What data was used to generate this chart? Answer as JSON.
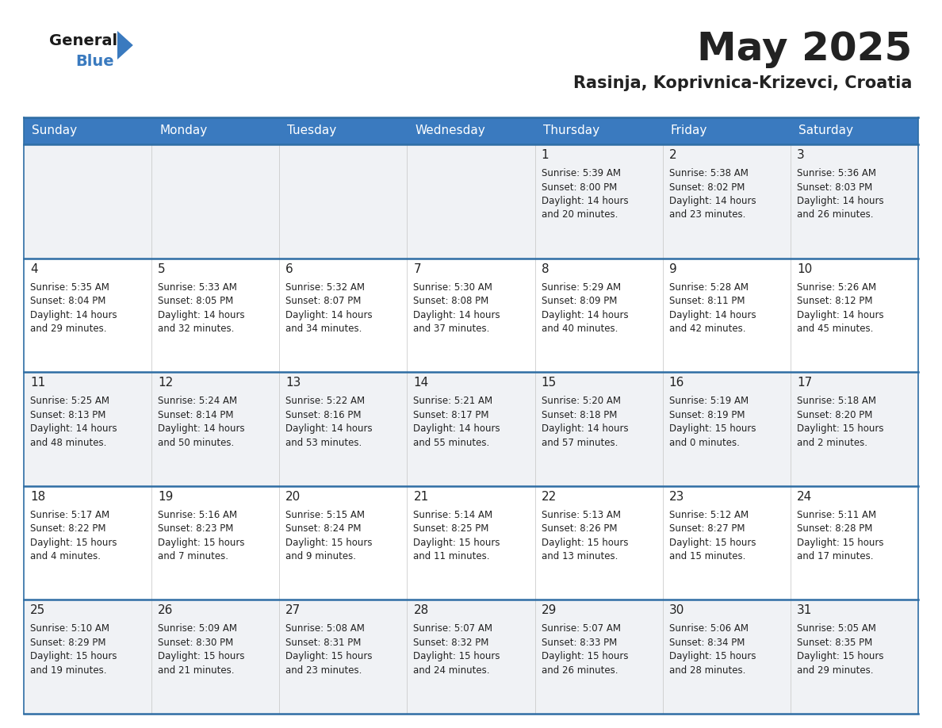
{
  "title": "May 2025",
  "subtitle": "Rasinja, Koprivnica-Krizevci, Croatia",
  "header_color": "#3a7abf",
  "header_text_color": "#ffffff",
  "cell_bg_white": "#ffffff",
  "cell_bg_gray": "#f0f2f5",
  "border_color": "#2e6da4",
  "text_color": "#222222",
  "days_of_week": [
    "Sunday",
    "Monday",
    "Tuesday",
    "Wednesday",
    "Thursday",
    "Friday",
    "Saturday"
  ],
  "weeks": [
    [
      {
        "day": "",
        "info": ""
      },
      {
        "day": "",
        "info": ""
      },
      {
        "day": "",
        "info": ""
      },
      {
        "day": "",
        "info": ""
      },
      {
        "day": "1",
        "info": "Sunrise: 5:39 AM\nSunset: 8:00 PM\nDaylight: 14 hours\nand 20 minutes."
      },
      {
        "day": "2",
        "info": "Sunrise: 5:38 AM\nSunset: 8:02 PM\nDaylight: 14 hours\nand 23 minutes."
      },
      {
        "day": "3",
        "info": "Sunrise: 5:36 AM\nSunset: 8:03 PM\nDaylight: 14 hours\nand 26 minutes."
      }
    ],
    [
      {
        "day": "4",
        "info": "Sunrise: 5:35 AM\nSunset: 8:04 PM\nDaylight: 14 hours\nand 29 minutes."
      },
      {
        "day": "5",
        "info": "Sunrise: 5:33 AM\nSunset: 8:05 PM\nDaylight: 14 hours\nand 32 minutes."
      },
      {
        "day": "6",
        "info": "Sunrise: 5:32 AM\nSunset: 8:07 PM\nDaylight: 14 hours\nand 34 minutes."
      },
      {
        "day": "7",
        "info": "Sunrise: 5:30 AM\nSunset: 8:08 PM\nDaylight: 14 hours\nand 37 minutes."
      },
      {
        "day": "8",
        "info": "Sunrise: 5:29 AM\nSunset: 8:09 PM\nDaylight: 14 hours\nand 40 minutes."
      },
      {
        "day": "9",
        "info": "Sunrise: 5:28 AM\nSunset: 8:11 PM\nDaylight: 14 hours\nand 42 minutes."
      },
      {
        "day": "10",
        "info": "Sunrise: 5:26 AM\nSunset: 8:12 PM\nDaylight: 14 hours\nand 45 minutes."
      }
    ],
    [
      {
        "day": "11",
        "info": "Sunrise: 5:25 AM\nSunset: 8:13 PM\nDaylight: 14 hours\nand 48 minutes."
      },
      {
        "day": "12",
        "info": "Sunrise: 5:24 AM\nSunset: 8:14 PM\nDaylight: 14 hours\nand 50 minutes."
      },
      {
        "day": "13",
        "info": "Sunrise: 5:22 AM\nSunset: 8:16 PM\nDaylight: 14 hours\nand 53 minutes."
      },
      {
        "day": "14",
        "info": "Sunrise: 5:21 AM\nSunset: 8:17 PM\nDaylight: 14 hours\nand 55 minutes."
      },
      {
        "day": "15",
        "info": "Sunrise: 5:20 AM\nSunset: 8:18 PM\nDaylight: 14 hours\nand 57 minutes."
      },
      {
        "day": "16",
        "info": "Sunrise: 5:19 AM\nSunset: 8:19 PM\nDaylight: 15 hours\nand 0 minutes."
      },
      {
        "day": "17",
        "info": "Sunrise: 5:18 AM\nSunset: 8:20 PM\nDaylight: 15 hours\nand 2 minutes."
      }
    ],
    [
      {
        "day": "18",
        "info": "Sunrise: 5:17 AM\nSunset: 8:22 PM\nDaylight: 15 hours\nand 4 minutes."
      },
      {
        "day": "19",
        "info": "Sunrise: 5:16 AM\nSunset: 8:23 PM\nDaylight: 15 hours\nand 7 minutes."
      },
      {
        "day": "20",
        "info": "Sunrise: 5:15 AM\nSunset: 8:24 PM\nDaylight: 15 hours\nand 9 minutes."
      },
      {
        "day": "21",
        "info": "Sunrise: 5:14 AM\nSunset: 8:25 PM\nDaylight: 15 hours\nand 11 minutes."
      },
      {
        "day": "22",
        "info": "Sunrise: 5:13 AM\nSunset: 8:26 PM\nDaylight: 15 hours\nand 13 minutes."
      },
      {
        "day": "23",
        "info": "Sunrise: 5:12 AM\nSunset: 8:27 PM\nDaylight: 15 hours\nand 15 minutes."
      },
      {
        "day": "24",
        "info": "Sunrise: 5:11 AM\nSunset: 8:28 PM\nDaylight: 15 hours\nand 17 minutes."
      }
    ],
    [
      {
        "day": "25",
        "info": "Sunrise: 5:10 AM\nSunset: 8:29 PM\nDaylight: 15 hours\nand 19 minutes."
      },
      {
        "day": "26",
        "info": "Sunrise: 5:09 AM\nSunset: 8:30 PM\nDaylight: 15 hours\nand 21 minutes."
      },
      {
        "day": "27",
        "info": "Sunrise: 5:08 AM\nSunset: 8:31 PM\nDaylight: 15 hours\nand 23 minutes."
      },
      {
        "day": "28",
        "info": "Sunrise: 5:07 AM\nSunset: 8:32 PM\nDaylight: 15 hours\nand 24 minutes."
      },
      {
        "day": "29",
        "info": "Sunrise: 5:07 AM\nSunset: 8:33 PM\nDaylight: 15 hours\nand 26 minutes."
      },
      {
        "day": "30",
        "info": "Sunrise: 5:06 AM\nSunset: 8:34 PM\nDaylight: 15 hours\nand 28 minutes."
      },
      {
        "day": "31",
        "info": "Sunrise: 5:05 AM\nSunset: 8:35 PM\nDaylight: 15 hours\nand 29 minutes."
      }
    ]
  ],
  "logo_general_color": "#1a1a1a",
  "logo_blue_color": "#3a7abf",
  "logo_triangle_color": "#3a7abf"
}
